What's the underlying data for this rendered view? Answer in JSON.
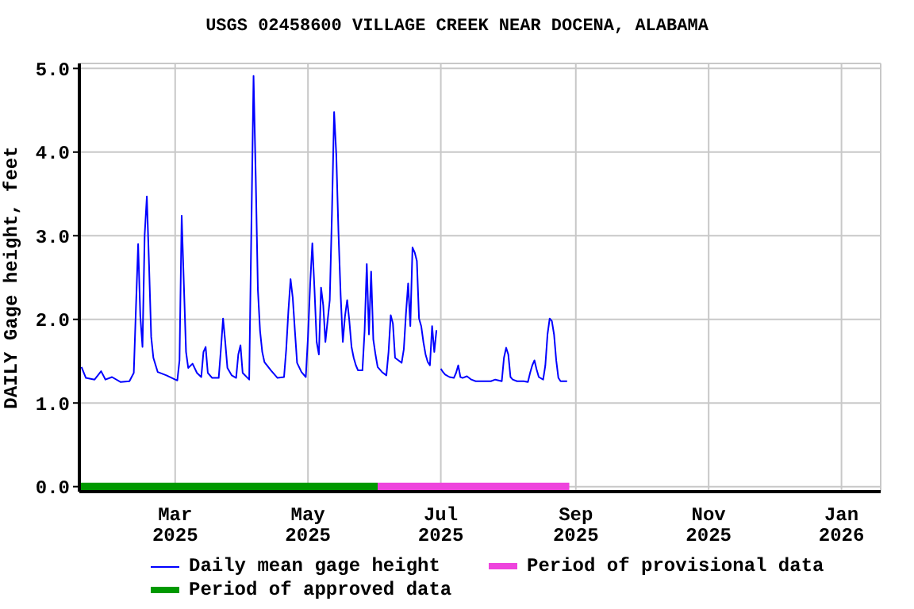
{
  "chart_data": {
    "type": "line",
    "title": "USGS 02458600 VILLAGE CREEK NEAR DOCENA, ALABAMA",
    "ylabel": "DAILY Gage height, feet",
    "xlim": [
      "2025-01-16",
      "2026-01-19"
    ],
    "xticks": [
      {
        "value": "2025-03-01",
        "label": "Mar 2025"
      },
      {
        "value": "2025-05-01",
        "label": "May 2025"
      },
      {
        "value": "2025-07-01",
        "label": "Jul 2025"
      },
      {
        "value": "2025-09-01",
        "label": "Sep 2025"
      },
      {
        "value": "2025-11-01",
        "label": "Nov 2025"
      },
      {
        "value": "2026-01-01",
        "label": "Jan 2026"
      }
    ],
    "ylim": [
      -0.06,
      5.06
    ],
    "yticks": [
      {
        "value": 0,
        "label": "0.0"
      },
      {
        "value": 1,
        "label": "1.0"
      },
      {
        "value": 2,
        "label": "2.0"
      },
      {
        "value": 3,
        "label": "3.0"
      },
      {
        "value": 4,
        "label": "4.0"
      },
      {
        "value": 5,
        "label": "5.0"
      }
    ],
    "grid": true,
    "legend": "bottom",
    "line_style": "solid",
    "marker": "none",
    "series": [
      {
        "name": "Daily mean gage height",
        "color": "#0000ff",
        "x": [
          "2025-01-17",
          "2025-01-19",
          "2025-01-23",
          "2025-01-26",
          "2025-01-28",
          "2025-01-31",
          "2025-02-04",
          "2025-02-08",
          "2025-02-10",
          "2025-02-11",
          "2025-02-12",
          "2025-02-13",
          "2025-02-14",
          "2025-02-15",
          "2025-02-16",
          "2025-02-17",
          "2025-02-18",
          "2025-02-19",
          "2025-02-21",
          "2025-02-25",
          "2025-03-01",
          "2025-03-02",
          "2025-03-03",
          "2025-03-04",
          "2025-03-05",
          "2025-03-06",
          "2025-03-07",
          "2025-03-09",
          "2025-03-11",
          "2025-03-13",
          "2025-03-14",
          "2025-03-15",
          "2025-03-16",
          "2025-03-18",
          "2025-03-21",
          "2025-03-22",
          "2025-03-23",
          "2025-03-24",
          "2025-03-25",
          "2025-03-27",
          "2025-03-29",
          "2025-03-30",
          "2025-03-31",
          "2025-04-01",
          "2025-04-04",
          "2025-04-05",
          "2025-04-06",
          "2025-04-07",
          "2025-04-08",
          "2025-04-09",
          "2025-04-10",
          "2025-04-11",
          "2025-04-14",
          "2025-04-17",
          "2025-04-20",
          "2025-04-21",
          "2025-04-22",
          "2025-04-23",
          "2025-04-24",
          "2025-04-25",
          "2025-04-26",
          "2025-04-28",
          "2025-04-30",
          "2025-05-01",
          "2025-05-02",
          "2025-05-03",
          "2025-05-04",
          "2025-05-05",
          "2025-05-06",
          "2025-05-07",
          "2025-05-08",
          "2025-05-09",
          "2025-05-10",
          "2025-05-11",
          "2025-05-12",
          "2025-05-13",
          "2025-05-14",
          "2025-05-15",
          "2025-05-16",
          "2025-05-17",
          "2025-05-18",
          "2025-05-19",
          "2025-05-20",
          "2025-05-21",
          "2025-05-22",
          "2025-05-23",
          "2025-05-24",
          "2025-05-26",
          "2025-05-27",
          "2025-05-28",
          "2025-05-29",
          "2025-05-30",
          "2025-05-31",
          "2025-06-01",
          "2025-06-02",
          "2025-06-04",
          "2025-06-06",
          "2025-06-07",
          "2025-06-08",
          "2025-06-09",
          "2025-06-10",
          "2025-06-13",
          "2025-06-14",
          "2025-06-15",
          "2025-06-16",
          "2025-06-17",
          "2025-06-18",
          "2025-06-19",
          "2025-06-20",
          "2025-06-21",
          "2025-06-22",
          "2025-06-23",
          "2025-06-24",
          "2025-06-25",
          "2025-06-26",
          "2025-06-27",
          "2025-06-28",
          "2025-06-29",
          "2025-06-30",
          "2025-07-01",
          "2025-07-02",
          "2025-07-03",
          "2025-07-05",
          "2025-07-07",
          "2025-07-08",
          "2025-07-09",
          "2025-07-10",
          "2025-07-11",
          "2025-07-13",
          "2025-07-15",
          "2025-07-17",
          "2025-07-21",
          "2025-07-24",
          "2025-07-26",
          "2025-07-29",
          "2025-07-30",
          "2025-07-31",
          "2025-08-01",
          "2025-08-02",
          "2025-08-03",
          "2025-08-05",
          "2025-08-08",
          "2025-08-10",
          "2025-08-11",
          "2025-08-12",
          "2025-08-13",
          "2025-08-14",
          "2025-08-15",
          "2025-08-17",
          "2025-08-18",
          "2025-08-19",
          "2025-08-20",
          "2025-08-21",
          "2025-08-22",
          "2025-08-23",
          "2025-08-24",
          "2025-08-25",
          "2025-08-28"
        ],
        "values": [
          1.43,
          1.3,
          1.28,
          1.38,
          1.28,
          1.31,
          1.25,
          1.26,
          1.36,
          2.14,
          2.9,
          2.04,
          1.67,
          3.01,
          3.47,
          2.66,
          1.79,
          1.54,
          1.37,
          1.33,
          1.28,
          1.27,
          1.51,
          3.24,
          2.42,
          1.61,
          1.42,
          1.47,
          1.36,
          1.31,
          1.61,
          1.67,
          1.36,
          1.3,
          1.3,
          1.64,
          2.01,
          1.73,
          1.42,
          1.33,
          1.3,
          1.58,
          1.69,
          1.36,
          1.28,
          3.09,
          4.91,
          3.71,
          2.35,
          1.86,
          1.61,
          1.49,
          1.39,
          1.3,
          1.31,
          1.64,
          2.1,
          2.48,
          2.26,
          1.86,
          1.48,
          1.37,
          1.31,
          1.79,
          2.42,
          2.91,
          2.35,
          1.73,
          1.58,
          2.38,
          2.17,
          1.73,
          1.98,
          2.23,
          3.26,
          4.48,
          3.97,
          3.04,
          2.29,
          1.73,
          2.04,
          2.23,
          1.98,
          1.67,
          1.54,
          1.45,
          1.39,
          1.39,
          1.86,
          2.66,
          1.82,
          2.57,
          1.76,
          1.58,
          1.43,
          1.37,
          1.33,
          1.61,
          2.05,
          1.95,
          1.54,
          1.48,
          1.64,
          2.07,
          2.43,
          1.92,
          2.86,
          2.8,
          2.7,
          2.01,
          1.92,
          1.73,
          1.58,
          1.49,
          1.45,
          1.92,
          1.61,
          1.87,
          null,
          1.41,
          1.37,
          1.34,
          1.31,
          1.3,
          1.36,
          1.45,
          1.31,
          1.3,
          1.32,
          1.28,
          1.26,
          1.26,
          1.26,
          1.28,
          1.26,
          1.54,
          1.66,
          1.58,
          1.31,
          1.28,
          1.26,
          1.26,
          1.25,
          1.36,
          1.45,
          1.51,
          1.4,
          1.31,
          1.28,
          1.45,
          1.82,
          2.01,
          1.98,
          1.82,
          1.51,
          1.3,
          1.26,
          1.26
        ]
      },
      {
        "name": "Period of provisional data",
        "color": "#ee44dd",
        "x": [
          "2025-06-02",
          "2025-08-29"
        ],
        "values": [
          0,
          0
        ]
      },
      {
        "name": "Period of approved data",
        "color": "#009900",
        "x": [
          "2025-01-16",
          "2025-06-02"
        ],
        "values": [
          0,
          0
        ]
      }
    ]
  }
}
